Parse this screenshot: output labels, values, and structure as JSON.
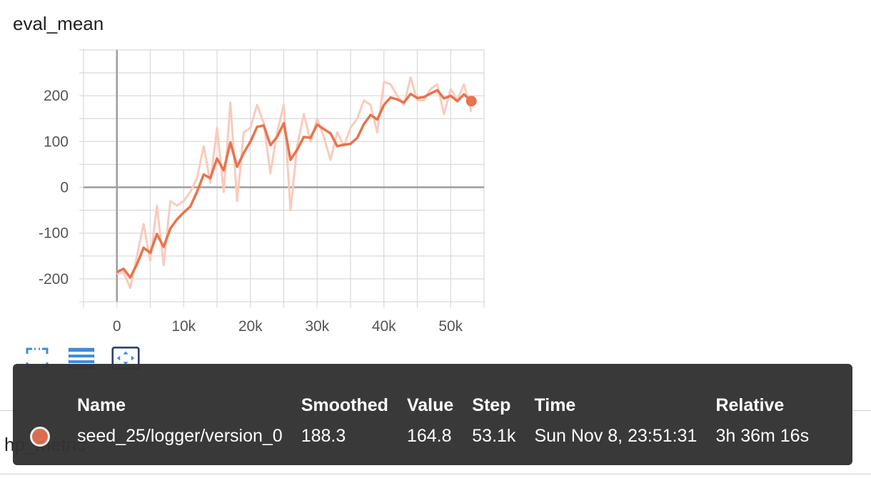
{
  "card_title": "eval_mean",
  "next_card_title": "hp_metric",
  "toolbar": {
    "icons": [
      "fullscreen-icon",
      "data-table-icon",
      "fit-domain-icon"
    ]
  },
  "colors": {
    "smoothed_line": "#e8734d",
    "raw_line": "#f9cbbb",
    "grid": "#d9d9d9",
    "axis": "#9e9e9e",
    "icon_blue": "#3b8ede",
    "tooltip_bg": "#333333"
  },
  "tooltip": {
    "headers": [
      "Name",
      "Smoothed",
      "Value",
      "Step",
      "Time",
      "Relative"
    ],
    "row": {
      "swatch_color": "#d9694a",
      "name": "seed_25/logger/version_0",
      "smoothed": "188.3",
      "value": "164.8",
      "step": "53.1k",
      "time": "Sun Nov 8, 23:51:31",
      "relative": "3h 36m 16s"
    }
  },
  "chart_data": {
    "type": "line",
    "title": "eval_mean",
    "xlabel": "",
    "ylabel": "",
    "xlim": [
      -5000,
      55000
    ],
    "ylim": [
      -250,
      300
    ],
    "x_ticks": [
      0,
      10000,
      20000,
      30000,
      40000,
      50000
    ],
    "x_tick_labels": [
      "0",
      "10k",
      "20k",
      "30k",
      "40k",
      "50k"
    ],
    "y_ticks": [
      -200,
      -100,
      0,
      100,
      200
    ],
    "y_tick_labels": [
      "-200",
      "-100",
      "0",
      "100",
      "200"
    ],
    "grid": true,
    "x": [
      0,
      1000,
      2000,
      3000,
      4000,
      5000,
      6000,
      7000,
      8000,
      9000,
      10000,
      11000,
      12000,
      13000,
      14000,
      15000,
      16000,
      17000,
      18000,
      19000,
      20000,
      21000,
      22000,
      23000,
      24000,
      25000,
      26000,
      27000,
      28000,
      29000,
      30000,
      31000,
      32000,
      33000,
      34000,
      35000,
      36000,
      37000,
      38000,
      39000,
      40000,
      41000,
      42000,
      43000,
      44000,
      45000,
      46000,
      47000,
      48000,
      49000,
      50000,
      51000,
      52000,
      53100
    ],
    "series": [
      {
        "values": [
          -190,
          -185,
          -220,
          -150,
          -80,
          -160,
          -40,
          -170,
          -30,
          -40,
          -30,
          -10,
          20,
          90,
          10,
          130,
          -10,
          185,
          -30,
          120,
          130,
          180,
          140,
          30,
          120,
          180,
          -50,
          90,
          160,
          100,
          150,
          110,
          60,
          120,
          90,
          130,
          150,
          190,
          180,
          120,
          230,
          225,
          200,
          180,
          240,
          190,
          190,
          215,
          225,
          160,
          215,
          190,
          225,
          164.8
        ]
      },
      {
        "values": [
          -185,
          -178,
          -197,
          -168,
          -132,
          -143,
          -102,
          -130,
          -90,
          -70,
          -55,
          -42,
          -10,
          28,
          20,
          63,
          37,
          98,
          45,
          75,
          100,
          132,
          135,
          92,
          110,
          140,
          60,
          82,
          110,
          108,
          137,
          127,
          118,
          90,
          93,
          95,
          108,
          138,
          158,
          148,
          180,
          196,
          192,
          185,
          204,
          195,
          197,
          205,
          212,
          194,
          200,
          188,
          203,
          188.3
        ]
      }
    ]
  }
}
